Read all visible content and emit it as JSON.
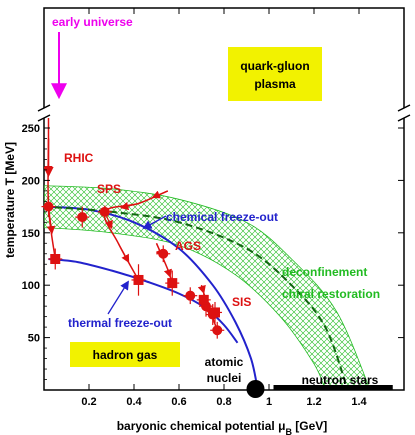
{
  "chart_data": {
    "type": "scatter",
    "title": "",
    "xlabel": "baryonic chemical potential",
    "xlabel_symbol": "μ",
    "xlabel_sub": "B",
    "xlabel_unit": "[GeV]",
    "ylabel": "temperature T [MeV]",
    "xlim": [
      0,
      1.6
    ],
    "ylim": [
      0,
      250
    ],
    "upper_panel_ylim": [
      250,
      500
    ],
    "y_break": true,
    "x_ticks": [
      {
        "value": 0.2,
        "label": "0.2"
      },
      {
        "value": 0.4,
        "label": "0.4"
      },
      {
        "value": 0.6,
        "label": "0.6"
      },
      {
        "value": 0.8,
        "label": "0.8"
      },
      {
        "value": 1.0,
        "label": "1"
      },
      {
        "value": 1.2,
        "label": "1.2"
      },
      {
        "value": 1.4,
        "label": "1.4"
      }
    ],
    "y_ticks": [
      {
        "value": 50,
        "label": "50"
      },
      {
        "value": 100,
        "label": "100"
      },
      {
        "value": 150,
        "label": "150"
      },
      {
        "value": 200,
        "label": "200"
      },
      {
        "value": 250,
        "label": "250"
      }
    ],
    "colors": {
      "data_points": "#dd1111",
      "freeze_out_curves": "#2222cc",
      "deconfinement_band": "#22bb22",
      "deconfinement_line": "#116611",
      "early_universe": "#ee00ee",
      "region_box": "#f2f200",
      "axis": "#000000"
    },
    "series": [
      {
        "name": "chemical freeze-out",
        "style": "circle",
        "points": [
          {
            "x": 0.02,
            "y": 175,
            "yerr": 10
          },
          {
            "x": 0.17,
            "y": 165,
            "yerr": 10
          },
          {
            "x": 0.27,
            "y": 170,
            "yerr": 6
          },
          {
            "x": 0.53,
            "y": 130,
            "yerr": 8
          },
          {
            "x": 0.65,
            "y": 90,
            "yerr": 8
          },
          {
            "x": 0.72,
            "y": 80,
            "yerr": 10
          },
          {
            "x": 0.75,
            "y": 72,
            "yerr": 10
          },
          {
            "x": 0.77,
            "y": 57,
            "yerr": 8
          }
        ]
      },
      {
        "name": "thermal freeze-out",
        "style": "square",
        "points": [
          {
            "x": 0.05,
            "y": 125,
            "yerr": 10
          },
          {
            "x": 0.42,
            "y": 105,
            "yerr": 15
          },
          {
            "x": 0.57,
            "y": 102,
            "yerr": 12
          },
          {
            "x": 0.71,
            "y": 86,
            "yerr": 10
          },
          {
            "x": 0.76,
            "y": 74,
            "yerr": 10
          }
        ]
      }
    ],
    "curves": [
      {
        "name": "chemical freeze-out",
        "points": [
          [
            0,
            175
          ],
          [
            0.2,
            172
          ],
          [
            0.4,
            160
          ],
          [
            0.6,
            135
          ],
          [
            0.75,
            100
          ],
          [
            0.85,
            65
          ],
          [
            0.92,
            30
          ],
          [
            0.95,
            0
          ]
        ]
      },
      {
        "name": "thermal freeze-out",
        "points": [
          [
            0.02,
            125
          ],
          [
            0.15,
            122
          ],
          [
            0.3,
            114
          ],
          [
            0.45,
            104
          ],
          [
            0.6,
            92
          ],
          [
            0.72,
            78
          ],
          [
            0.8,
            62
          ],
          [
            0.86,
            45
          ]
        ]
      },
      {
        "name": "deconfinement",
        "style": "dashed",
        "points": [
          [
            0,
            175
          ],
          [
            0.3,
            170
          ],
          [
            0.6,
            160
          ],
          [
            0.9,
            135
          ],
          [
            1.1,
            100
          ],
          [
            1.25,
            60
          ],
          [
            1.35,
            0
          ]
        ]
      },
      {
        "name": "RHIC trajectory",
        "points": [
          [
            0.02,
            240
          ],
          [
            0.02,
            175
          ],
          [
            0.05,
            125
          ]
        ]
      },
      {
        "name": "SPS trajectory",
        "points": [
          [
            0.55,
            190
          ],
          [
            0.42,
            178
          ],
          [
            0.27,
            170
          ],
          [
            0.33,
            140
          ],
          [
            0.42,
            105
          ]
        ]
      },
      {
        "name": "AGS trajectory",
        "points": [
          [
            0.5,
            140
          ],
          [
            0.55,
            115
          ],
          [
            0.57,
            102
          ]
        ]
      },
      {
        "name": "SIS trajectory",
        "points": [
          [
            0.7,
            100
          ],
          [
            0.72,
            86
          ],
          [
            0.77,
            57
          ]
        ]
      }
    ],
    "band": {
      "upper": [
        [
          0,
          195
        ],
        [
          0.3,
          192
        ],
        [
          0.6,
          182
        ],
        [
          0.9,
          160
        ],
        [
          1.1,
          125
        ],
        [
          1.3,
          75
        ],
        [
          1.45,
          0
        ]
      ],
      "lower": [
        [
          0,
          155
        ],
        [
          0.3,
          150
        ],
        [
          0.6,
          138
        ],
        [
          0.85,
          110
        ],
        [
          1.05,
          70
        ],
        [
          1.2,
          25
        ],
        [
          1.25,
          0
        ]
      ]
    },
    "markers": [
      {
        "name": "atomic nuclei",
        "x": 0.94,
        "y": 0
      },
      {
        "name": "neutron stars",
        "x0": 1.02,
        "x1": 1.55,
        "y": 0
      }
    ],
    "annotations": {
      "early_universe": "early universe",
      "rhic": "RHIC",
      "sps": "SPS",
      "ags": "AGS",
      "sis": "SIS",
      "chemical_freeze_out": "chemical freeze-out",
      "thermal_freeze_out": "thermal freeze-out",
      "deconfinement": "deconfinement",
      "chiral_restoration": "chiral restoration",
      "quark_gluon_plasma_line1": "quark-gluon",
      "quark_gluon_plasma_line2": "plasma",
      "hadron_gas": "hadron gas",
      "atomic_nuclei_line1": "atomic",
      "atomic_nuclei_line2": "nuclei",
      "neutron_stars": "neutron stars"
    }
  }
}
